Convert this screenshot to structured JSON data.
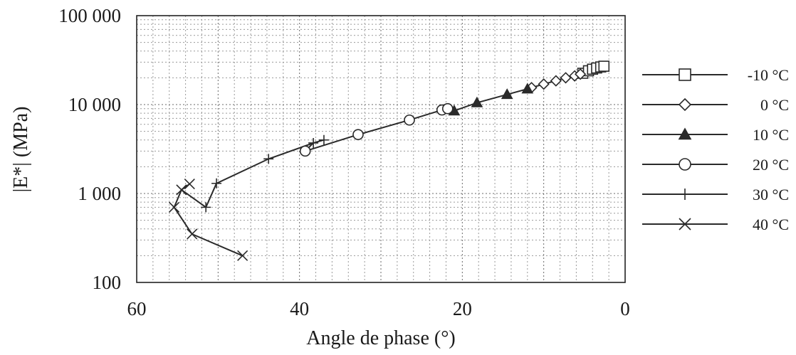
{
  "chart_data": {
    "type": "scatter",
    "xlabel": "Angle de phase (°)",
    "ylabel": "|E*| (MPa)",
    "xlim": [
      60,
      0
    ],
    "x_reversed": true,
    "ylim": [
      100,
      100000
    ],
    "y_scale": "log",
    "grid": true,
    "legend_position": "right",
    "x_ticks": [
      "60",
      "40",
      "20",
      "0"
    ],
    "y_ticks": [
      "100",
      "1 000",
      "10 000",
      "100 000"
    ],
    "series": [
      {
        "name": "-10 °C",
        "marker": "square-open",
        "points": [
          [
            5.2,
            22500
          ],
          [
            4.5,
            24000
          ],
          [
            4.0,
            25000
          ],
          [
            3.5,
            25800
          ],
          [
            3.0,
            26500
          ],
          [
            2.6,
            27000
          ]
        ]
      },
      {
        "name": "0 °C",
        "marker": "diamond-open",
        "points": [
          [
            11.5,
            15500
          ],
          [
            10.0,
            17000
          ],
          [
            8.5,
            18500
          ],
          [
            7.3,
            20000
          ],
          [
            6.2,
            21000
          ],
          [
            5.5,
            22000
          ]
        ]
      },
      {
        "name": "10 °C",
        "marker": "triangle-filled",
        "points": [
          [
            21.0,
            8500
          ],
          [
            18.2,
            10500
          ],
          [
            14.5,
            13000
          ],
          [
            12.0,
            15000
          ]
        ]
      },
      {
        "name": "20 °C",
        "marker": "circle-open",
        "points": [
          [
            39.3,
            3000
          ],
          [
            32.8,
            4600
          ],
          [
            26.5,
            6700
          ],
          [
            22.5,
            8700
          ],
          [
            21.8,
            9000
          ]
        ]
      },
      {
        "name": "30 °C",
        "marker": "plus",
        "points": [
          [
            51.5,
            700
          ],
          [
            50.2,
            1300
          ],
          [
            43.8,
            2450
          ],
          [
            38.3,
            3700
          ],
          [
            37.0,
            4000
          ]
        ]
      },
      {
        "name": "40 °C",
        "marker": "x",
        "points": [
          [
            47.0,
            200
          ],
          [
            53.2,
            350
          ],
          [
            55.4,
            700
          ],
          [
            54.5,
            1100
          ],
          [
            53.5,
            1280
          ]
        ]
      }
    ]
  }
}
